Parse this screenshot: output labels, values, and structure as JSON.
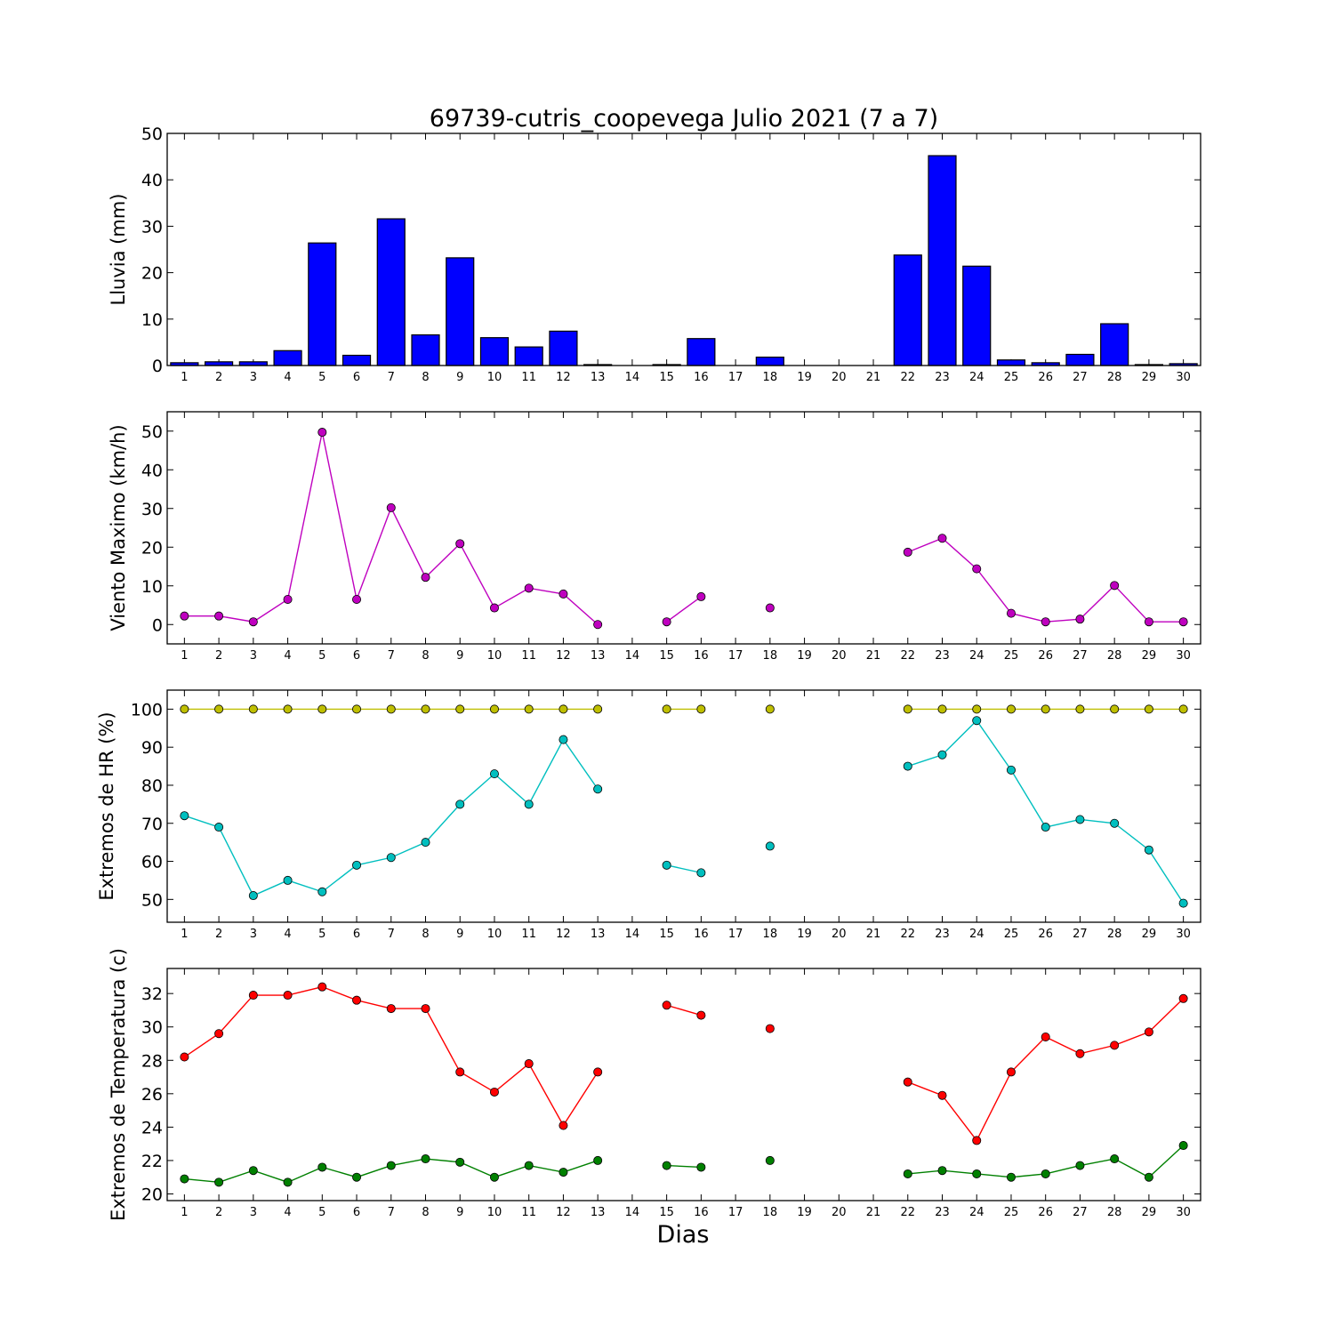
{
  "chart_data": [
    {
      "type": "bar",
      "title": "69739-cutris_coopevega Julio 2021  (7 a 7)",
      "xlabel": "",
      "ylabel": "Lluvia (mm)",
      "ylim": [
        0,
        50
      ],
      "yticks": [
        0,
        10,
        20,
        30,
        40,
        50
      ],
      "categories": [
        1,
        2,
        3,
        4,
        5,
        6,
        7,
        8,
        9,
        10,
        11,
        12,
        13,
        14,
        15,
        16,
        17,
        18,
        19,
        20,
        21,
        22,
        23,
        24,
        25,
        26,
        27,
        28,
        29,
        30
      ],
      "x_tick_labels": [
        "1",
        "2",
        "3",
        "4",
        "5",
        "6",
        "7",
        "8",
        "9",
        "10",
        "11",
        "12",
        "13",
        "14",
        "15",
        "16",
        "17",
        "18",
        "19",
        "20",
        "21",
        "22",
        "23",
        "24",
        "25",
        "26",
        "27",
        "28",
        "29",
        "30"
      ],
      "series": [
        {
          "color": "#0000ff",
          "values": [
            0.6,
            0.8,
            0.8,
            3.2,
            26.4,
            2.2,
            31.6,
            6.6,
            23.2,
            6.0,
            4.0,
            7.4,
            0.2,
            null,
            0.2,
            5.8,
            null,
            1.8,
            null,
            null,
            null,
            23.8,
            45.2,
            21.4,
            1.2,
            0.6,
            2.4,
            9.0,
            0.2,
            0.4
          ]
        }
      ],
      "grid": false
    },
    {
      "type": "line",
      "title": "",
      "xlabel": "",
      "ylabel": "Viento Maximo (km/h)",
      "ylim": [
        -5,
        55
      ],
      "yticks": [
        0,
        10,
        20,
        30,
        40,
        50
      ],
      "x": [
        1,
        2,
        3,
        4,
        5,
        6,
        7,
        8,
        9,
        10,
        11,
        12,
        13,
        14,
        15,
        16,
        17,
        18,
        19,
        20,
        21,
        22,
        23,
        24,
        25,
        26,
        27,
        28,
        29,
        30
      ],
      "x_tick_labels": [
        "1",
        "2",
        "3",
        "4",
        "5",
        "6",
        "7",
        "8",
        "9",
        "10",
        "11",
        "12",
        "13",
        "14",
        "15",
        "16",
        "17",
        "18",
        "19",
        "20",
        "21",
        "22",
        "23",
        "24",
        "25",
        "26",
        "27",
        "28",
        "29",
        "30"
      ],
      "series": [
        {
          "color": "#bf00bf",
          "values": [
            2.2,
            2.2,
            0.7,
            6.5,
            49.7,
            6.5,
            30.2,
            12.2,
            20.9,
            4.3,
            9.4,
            7.9,
            0.0,
            null,
            0.7,
            7.2,
            null,
            4.3,
            null,
            null,
            null,
            18.7,
            22.3,
            14.4,
            2.9,
            0.7,
            1.4,
            10.1,
            0.7,
            0.7
          ]
        }
      ],
      "grid": false
    },
    {
      "type": "line",
      "title": "",
      "xlabel": "",
      "ylabel": "Extremos de HR (%)",
      "ylim": [
        44,
        105
      ],
      "yticks": [
        50,
        60,
        70,
        80,
        90,
        100
      ],
      "x": [
        1,
        2,
        3,
        4,
        5,
        6,
        7,
        8,
        9,
        10,
        11,
        12,
        13,
        14,
        15,
        16,
        17,
        18,
        19,
        20,
        21,
        22,
        23,
        24,
        25,
        26,
        27,
        28,
        29,
        30
      ],
      "x_tick_labels": [
        "1",
        "2",
        "3",
        "4",
        "5",
        "6",
        "7",
        "8",
        "9",
        "10",
        "11",
        "12",
        "13",
        "14",
        "15",
        "16",
        "17",
        "18",
        "19",
        "20",
        "21",
        "22",
        "23",
        "24",
        "25",
        "26",
        "27",
        "28",
        "29",
        "30"
      ],
      "series": [
        {
          "color": "#bfbf00",
          "values": [
            100,
            100,
            100,
            100,
            100,
            100,
            100,
            100,
            100,
            100,
            100,
            100,
            100,
            null,
            100,
            100,
            null,
            100,
            null,
            null,
            null,
            100,
            100,
            100,
            100,
            100,
            100,
            100,
            100,
            100
          ]
        },
        {
          "color": "#00bfbf",
          "values": [
            72,
            69,
            51,
            55,
            52,
            59,
            61,
            65,
            75,
            83,
            75,
            92,
            79,
            null,
            59,
            57,
            null,
            64,
            null,
            null,
            null,
            85,
            88,
            97,
            84,
            69,
            71,
            70,
            63,
            49
          ]
        }
      ],
      "grid": false
    },
    {
      "type": "line",
      "title": "",
      "xlabel": "Dias",
      "ylabel": "Extremos de Temperatura (c)",
      "ylim": [
        19.6,
        33.5
      ],
      "yticks": [
        20,
        22,
        24,
        26,
        28,
        30,
        32
      ],
      "x": [
        1,
        2,
        3,
        4,
        5,
        6,
        7,
        8,
        9,
        10,
        11,
        12,
        13,
        14,
        15,
        16,
        17,
        18,
        19,
        20,
        21,
        22,
        23,
        24,
        25,
        26,
        27,
        28,
        29,
        30
      ],
      "x_tick_labels": [
        "1",
        "2",
        "3",
        "4",
        "5",
        "6",
        "7",
        "8",
        "9",
        "10",
        "11",
        "12",
        "13",
        "14",
        "15",
        "16",
        "17",
        "18",
        "19",
        "20",
        "21",
        "22",
        "23",
        "24",
        "25",
        "26",
        "27",
        "28",
        "29",
        "30"
      ],
      "series": [
        {
          "color": "#ff0000",
          "values": [
            28.2,
            29.6,
            31.9,
            31.9,
            32.4,
            31.6,
            31.1,
            31.1,
            27.3,
            26.1,
            27.8,
            24.1,
            27.3,
            null,
            31.3,
            30.7,
            null,
            29.9,
            null,
            null,
            null,
            26.7,
            25.9,
            23.2,
            27.3,
            29.4,
            28.4,
            28.9,
            29.7,
            31.7
          ]
        },
        {
          "color": "#008000",
          "values": [
            20.9,
            20.7,
            21.4,
            20.7,
            21.6,
            21.0,
            21.7,
            22.1,
            21.9,
            21.0,
            21.7,
            21.3,
            22.0,
            null,
            21.7,
            21.6,
            null,
            22.0,
            null,
            null,
            null,
            21.2,
            21.4,
            21.2,
            21.0,
            21.2,
            21.7,
            22.1,
            21.0,
            22.9
          ]
        }
      ],
      "grid": false
    }
  ]
}
